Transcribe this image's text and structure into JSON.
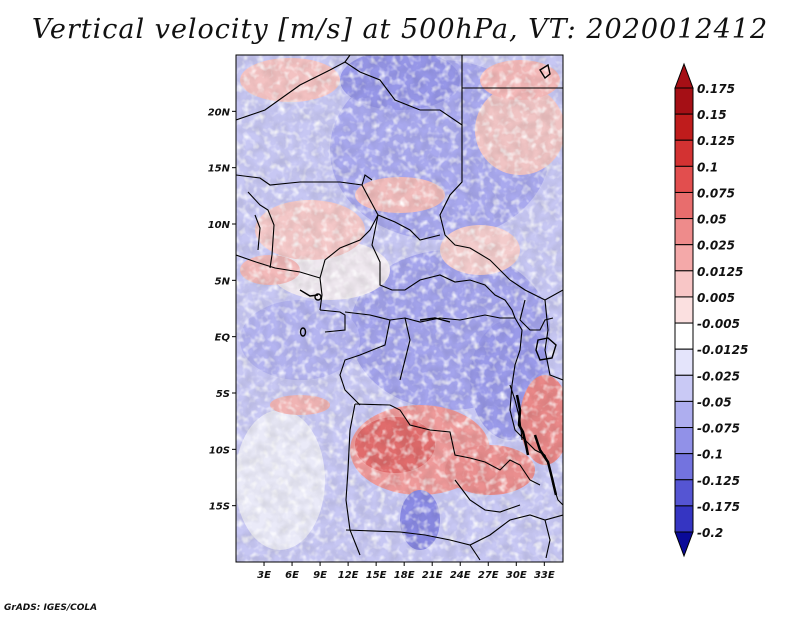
{
  "title": "Vertical velocity [m/s] at 500hPa, VT: 2020012412",
  "footer": "GrADS: IGES/COLA",
  "map": {
    "lon_range": [
      0,
      35
    ],
    "lat_range": [
      -20,
      25
    ],
    "lat_ticks": [
      {
        "value": 20,
        "label": "20N"
      },
      {
        "value": 15,
        "label": "15N"
      },
      {
        "value": 10,
        "label": "10N"
      },
      {
        "value": 5,
        "label": "5N"
      },
      {
        "value": 0,
        "label": "EQ"
      },
      {
        "value": -5,
        "label": "5S"
      },
      {
        "value": -10,
        "label": "10S"
      },
      {
        "value": -15,
        "label": "15S"
      }
    ],
    "lon_ticks": [
      {
        "value": 3,
        "label": "3E"
      },
      {
        "value": 6,
        "label": "6E"
      },
      {
        "value": 9,
        "label": "9E"
      },
      {
        "value": 12,
        "label": "12E"
      },
      {
        "value": 15,
        "label": "15E"
      },
      {
        "value": 18,
        "label": "18E"
      },
      {
        "value": 21,
        "label": "21E"
      },
      {
        "value": 24,
        "label": "24E"
      },
      {
        "value": 27,
        "label": "27E"
      },
      {
        "value": 30,
        "label": "30E"
      },
      {
        "value": 33,
        "label": "33E"
      }
    ]
  },
  "colorbar": {
    "levels": [
      {
        "label": "0.175",
        "color": "#a50f15"
      },
      {
        "label": "0.15",
        "color": "#bf1c1c"
      },
      {
        "label": "0.125",
        "color": "#d33232"
      },
      {
        "label": "0.1",
        "color": "#e24e4e"
      },
      {
        "label": "0.075",
        "color": "#e86d6d"
      },
      {
        "label": "0.05",
        "color": "#ee8b8b"
      },
      {
        "label": "0.025",
        "color": "#f4a9a9"
      },
      {
        "label": "0.0125",
        "color": "#f8c6c6"
      },
      {
        "label": "0.005",
        "color": "#fbe0e0"
      },
      {
        "label": "-0.005",
        "color": "#ffffff"
      },
      {
        "label": "-0.0125",
        "color": "#e4e4fb"
      },
      {
        "label": "-0.025",
        "color": "#c9c9f5"
      },
      {
        "label": "-0.05",
        "color": "#aeaeef"
      },
      {
        "label": "-0.075",
        "color": "#9191e8"
      },
      {
        "label": "-0.1",
        "color": "#7373df"
      },
      {
        "label": "-0.125",
        "color": "#5555d3"
      },
      {
        "label": "-0.175",
        "color": "#3535c2"
      },
      {
        "label": "-0.2",
        "color": "#1d1db0"
      }
    ],
    "top_arrow_color": "#a50f15",
    "bottom_arrow_color": "#0a0a98"
  }
}
